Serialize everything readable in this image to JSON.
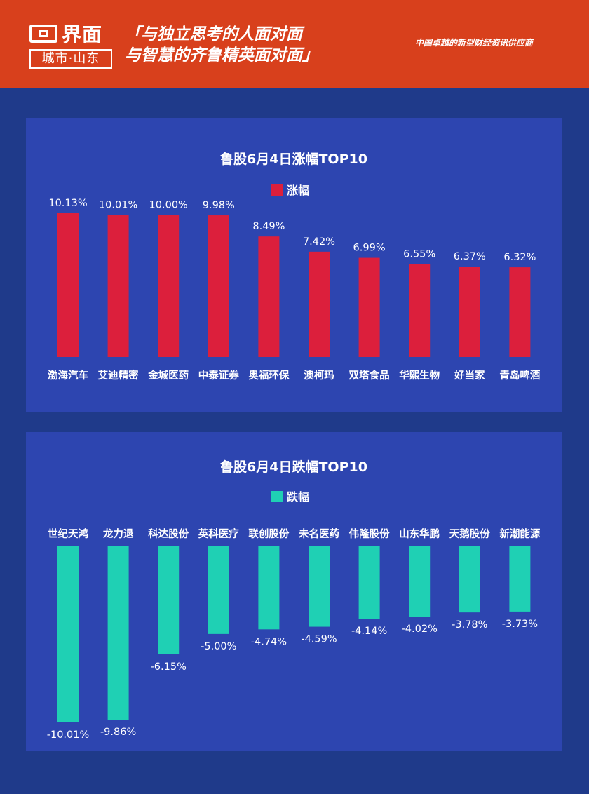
{
  "header": {
    "logo_text": "界面",
    "logo_sub": "城市·山东",
    "slogan_line1": "「与独立思考的人面对面",
    "slogan_line2": "与智慧的齐鲁精英面对面」",
    "tagline": "中国卓越的新型财经资讯供应商"
  },
  "colors": {
    "background": "#1f3a8a",
    "panel": "#2d45b0",
    "header": "#d8401c",
    "gain": "#dc1f3c",
    "loss": "#1fd0b4"
  },
  "chart_data": [
    {
      "type": "bar",
      "title": "鲁股6月4日涨幅TOP10",
      "legend_position": "top-center",
      "categories": [
        "渤海汽车",
        "艾迪精密",
        "金城医药",
        "中泰证券",
        "奥福环保",
        "澳柯玛",
        "双塔食品",
        "华熙生物",
        "好当家",
        "青岛啤酒"
      ],
      "series": [
        {
          "name": "涨幅",
          "values": [
            10.13,
            10.01,
            10.0,
            9.98,
            8.49,
            7.42,
            6.99,
            6.55,
            6.37,
            6.32
          ],
          "labels": [
            "10.13%",
            "10.01%",
            "10.00%",
            "9.98%",
            "8.49%",
            "7.42%",
            "6.99%",
            "6.55%",
            "6.37%",
            "6.32%"
          ],
          "color": "#dc1f3c"
        }
      ],
      "ylim": [
        0,
        10.13
      ],
      "grid": false
    },
    {
      "type": "bar",
      "title": "鲁股6月4日跌幅TOP10",
      "legend_position": "top-center",
      "categories": [
        "世纪天鸿",
        "龙力退",
        "科达股份",
        "英科医疗",
        "联创股份",
        "未名医药",
        "伟隆股份",
        "山东华鹏",
        "天鹅股份",
        "新潮能源"
      ],
      "series": [
        {
          "name": "跌幅",
          "values": [
            -10.01,
            -9.86,
            -6.15,
            -5.0,
            -4.74,
            -4.59,
            -4.14,
            -4.02,
            -3.78,
            -3.73
          ],
          "labels": [
            "-10.01%",
            "-9.86%",
            "-6.15%",
            "-5.00%",
            "-4.74%",
            "-4.59%",
            "-4.14%",
            "-4.02%",
            "-3.78%",
            "-3.73%"
          ],
          "color": "#1fd0b4"
        }
      ],
      "ylim": [
        -10.01,
        0
      ],
      "grid": false
    }
  ]
}
